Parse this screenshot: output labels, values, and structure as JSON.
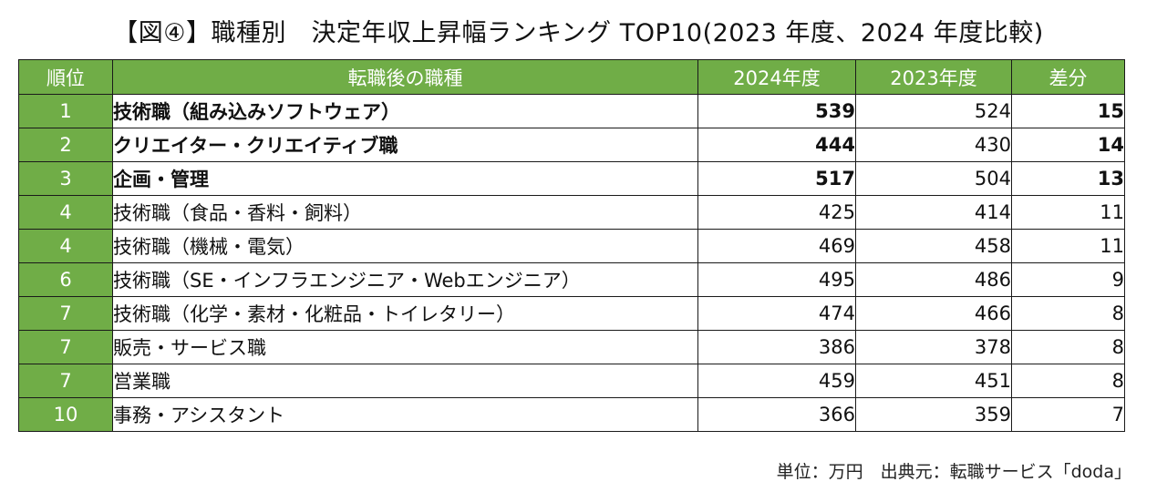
{
  "title": "【図④】職種別　決定年収上昇幅ランキング TOP10(2023 年度、2024 年度比較)",
  "table": {
    "headers": {
      "rank": "順位",
      "job": "転職後の職種",
      "y2024": "2024年度",
      "y2023": "2023年度",
      "diff": "差分"
    },
    "rows": [
      {
        "rank": "1",
        "job": "技術職（組み込みソフトウェア）",
        "y2024": "539",
        "y2023": "524",
        "diff": "15",
        "bold": true
      },
      {
        "rank": "2",
        "job": "クリエイター・クリエイティブ職",
        "y2024": "444",
        "y2023": "430",
        "diff": "14",
        "bold": true
      },
      {
        "rank": "3",
        "job": "企画・管理",
        "y2024": "517",
        "y2023": "504",
        "diff": "13",
        "bold": true
      },
      {
        "rank": "4",
        "job": "技術職（食品・香料・飼料）",
        "y2024": "425",
        "y2023": "414",
        "diff": "11",
        "bold": false
      },
      {
        "rank": "4",
        "job": "技術職（機械・電気）",
        "y2024": "469",
        "y2023": "458",
        "diff": "11",
        "bold": false
      },
      {
        "rank": "6",
        "job": "技術職（SE・インフラエンジニア・Webエンジニア）",
        "y2024": "495",
        "y2023": "486",
        "diff": "9",
        "bold": false
      },
      {
        "rank": "7",
        "job": "技術職（化学・素材・化粧品・トイレタリー）",
        "y2024": "474",
        "y2023": "466",
        "diff": "8",
        "bold": false
      },
      {
        "rank": "7",
        "job": "販売・サービス職",
        "y2024": "386",
        "y2023": "378",
        "diff": "8",
        "bold": false
      },
      {
        "rank": "7",
        "job": "営業職",
        "y2024": "459",
        "y2023": "451",
        "diff": "8",
        "bold": false
      },
      {
        "rank": "10",
        "job": "事務・アシスタント",
        "y2024": "366",
        "y2023": "359",
        "diff": "7",
        "bold": false
      }
    ]
  },
  "footer": "単位：万円　出典元：転職サービス「doda」",
  "colors": {
    "header_bg": "#70ad47",
    "rank_bg": "#70ad47",
    "header_text": "#ffffff"
  }
}
